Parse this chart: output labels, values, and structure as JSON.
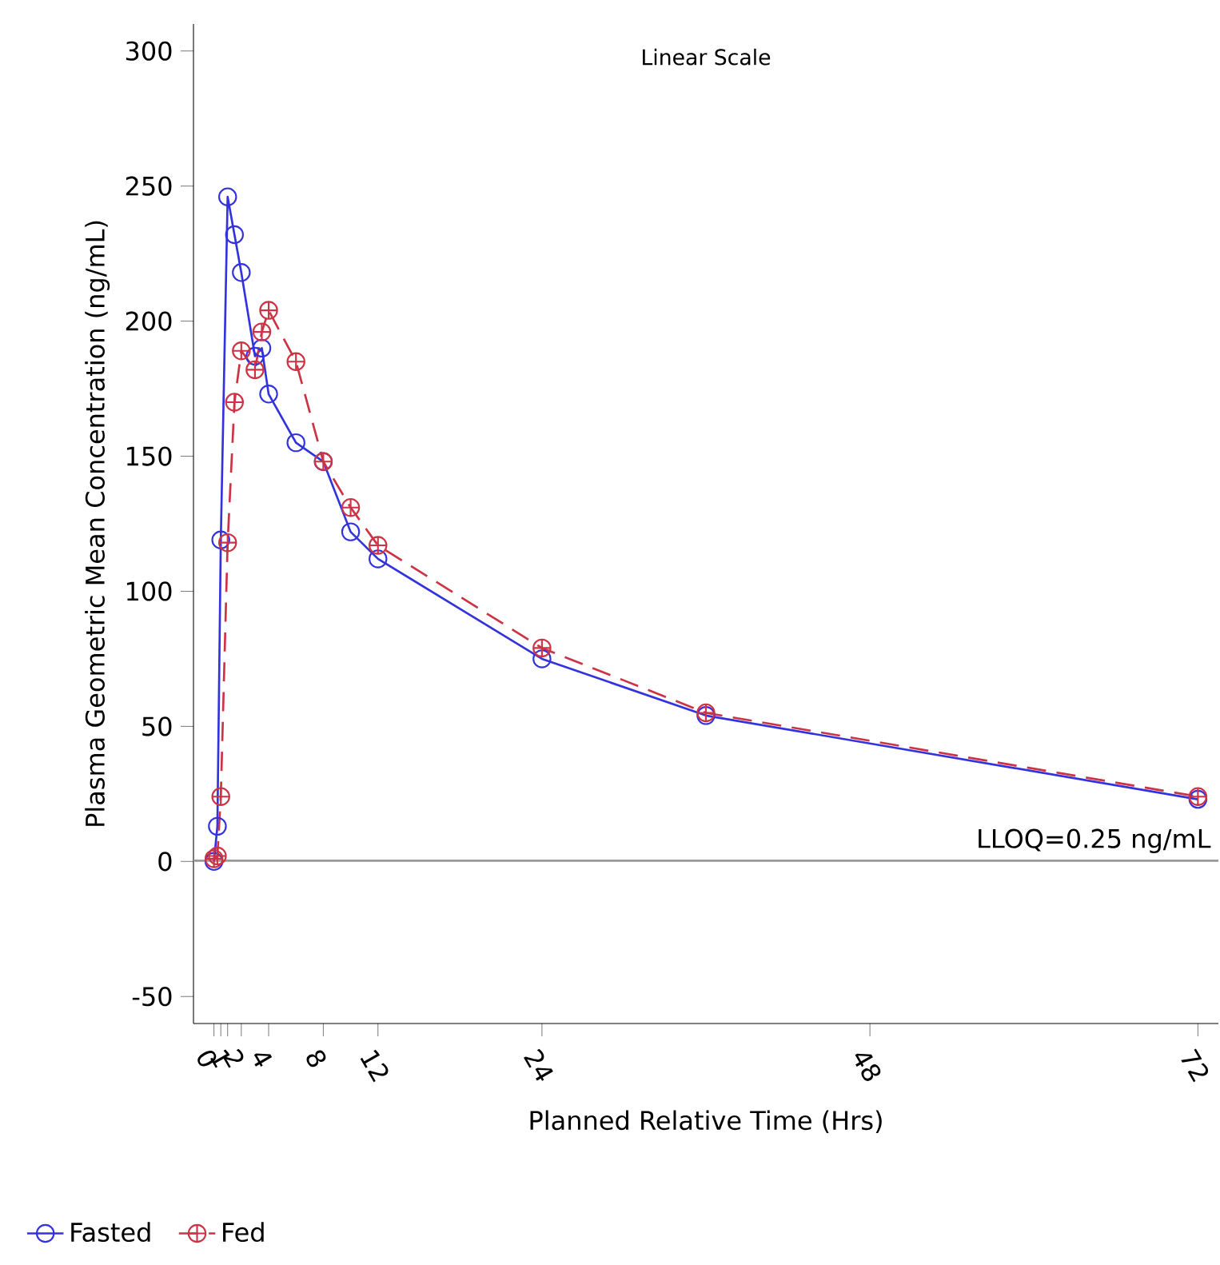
{
  "chart_data": {
    "type": "line",
    "title": "Linear Scale",
    "xlabel": "Planned Relative Time (Hrs)",
    "ylabel": "Plasma Geometric Mean Concentration (ng/mL)",
    "xlim": [
      -1.5,
      73.5
    ],
    "ylim": [
      -60,
      310
    ],
    "xticks": [
      0,
      {
        "value": 0.5,
        "label": null
      },
      1,
      2,
      4,
      8,
      12,
      24,
      48,
      72
    ],
    "yticks": [
      -50,
      0,
      50,
      100,
      150,
      200,
      250,
      300
    ],
    "series": [
      {
        "name": "Fasted",
        "color": "#3333dd",
        "marker": "circle",
        "line_style": "solid",
        "x": [
          0,
          0.25,
          0.5,
          1,
          1.5,
          2,
          3,
          3.5,
          4,
          6,
          8,
          10,
          12,
          24,
          36,
          72
        ],
        "values": [
          0,
          13,
          119,
          246,
          232,
          218,
          187,
          190,
          173,
          155,
          148,
          122,
          112,
          75,
          54,
          23
        ]
      },
      {
        "name": "Fed",
        "color": "#cc3344",
        "marker": "cross",
        "line_style": "dashed",
        "x": [
          0,
          0.25,
          0.5,
          1,
          1.5,
          2,
          3,
          3.5,
          4,
          6,
          8,
          10,
          12,
          24,
          36,
          72
        ],
        "values": [
          1,
          2,
          24,
          118,
          170,
          189,
          182,
          196,
          204,
          185,
          148,
          131,
          117,
          79,
          55,
          24
        ]
      }
    ],
    "ref_lines": [
      {
        "axis": "y",
        "value": 0.25,
        "label": "LLOQ=0.25 ng/mL",
        "color": "#999999"
      }
    ],
    "grid": false,
    "legend": "bottom"
  }
}
